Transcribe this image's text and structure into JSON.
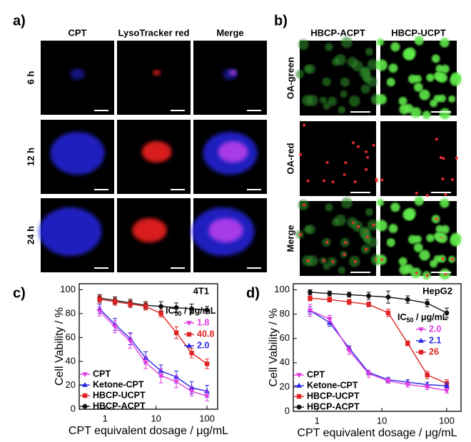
{
  "panel_a": {
    "label": "a)",
    "columns": [
      "CPT",
      "LysoTracker red",
      "Merge"
    ],
    "rows": [
      "6 h",
      "12 h",
      "24 h"
    ]
  },
  "panel_b": {
    "label": "b)",
    "columns": [
      "HBCP-ACPT",
      "HBCP-UCPT"
    ],
    "rows": [
      "OA-green",
      "OA-red",
      "Merge"
    ]
  },
  "chart_data": [
    {
      "type": "line",
      "panel_label": "c)",
      "title": "4T1",
      "x_label": "CPT equivalent dosage / μg/mL",
      "y_label": "Cell Vability / %",
      "x": [
        0.78,
        1.56,
        3.125,
        6.25,
        12.5,
        25,
        50,
        100
      ],
      "x_scale": "log",
      "xlim": [
        0.31,
        162
      ],
      "xticks": [
        1,
        10,
        100
      ],
      "ylim": [
        0,
        105
      ],
      "yticks": [
        0,
        20,
        40,
        60,
        80,
        100
      ],
      "legend": "lower left",
      "series": [
        {
          "name": "CPT",
          "color": "#e03ce0",
          "marker": "triangle-down",
          "values": [
            82,
            69,
            57,
            39,
            28,
            23,
            15,
            11
          ],
          "errors": [
            4,
            5,
            6,
            5,
            6,
            5,
            4,
            4
          ]
        },
        {
          "name": "Ketone-CPT",
          "color": "#2626e6",
          "marker": "triangle-up",
          "values": [
            84,
            71,
            59,
            43,
            32,
            27,
            18,
            15
          ],
          "errors": [
            4,
            5,
            5,
            5,
            5,
            5,
            5,
            5
          ]
        },
        {
          "name": "HBCP-UCPT",
          "color": "#e02222",
          "marker": "square",
          "values": [
            92,
            90,
            88,
            86,
            80,
            64,
            47,
            38
          ],
          "errors": [
            3,
            3,
            3,
            3,
            3,
            5,
            4,
            4
          ]
        },
        {
          "name": "HBCP-ACPT",
          "color": "#111111",
          "marker": "circle",
          "values": [
            93,
            91,
            89,
            87,
            86,
            85,
            84,
            83
          ],
          "errors": [
            3,
            3,
            3,
            3,
            4,
            4,
            4,
            3
          ]
        }
      ],
      "ic50_label": {
        "main": "IC",
        "sub": "50",
        "rest": " / μg/mL"
      },
      "annotations": [
        {
          "text": "1.8",
          "color": "#e03ce0",
          "marker": "triangle-down"
        },
        {
          "text": "40.8",
          "color": "#e02222",
          "marker": "square"
        },
        {
          "text": "2.0",
          "color": "#2626e6",
          "marker": "triangle-up"
        }
      ]
    },
    {
      "type": "line",
      "panel_label": "d)",
      "title": "HepG2",
      "x_label": "CPT equivalent dosage / μg/mL",
      "y_label": "Cell Vability / %",
      "x": [
        0.78,
        1.56,
        3.125,
        6.25,
        12.5,
        25,
        50,
        100
      ],
      "x_scale": "log",
      "xlim": [
        0.43,
        166
      ],
      "xticks": [
        1,
        10,
        100
      ],
      "ylim": [
        0,
        105
      ],
      "yticks": [
        0,
        20,
        40,
        60,
        80,
        100
      ],
      "legend": "lower left",
      "series": [
        {
          "name": "CPT",
          "color": "#e03ce0",
          "marker": "triangle-down",
          "values": [
            83,
            76,
            50,
            31,
            25,
            22,
            20,
            17
          ],
          "errors": [
            5,
            3,
            3,
            3,
            2,
            2,
            2,
            2
          ]
        },
        {
          "name": "Ketone-CPT",
          "color": "#2626e6",
          "marker": "triangle-up",
          "values": [
            83,
            73,
            52,
            32,
            26,
            24,
            22,
            21
          ],
          "errors": [
            3,
            3,
            2,
            2,
            2,
            2,
            2,
            2
          ]
        },
        {
          "name": "HBCP-UCPT",
          "color": "#e02222",
          "marker": "square",
          "values": [
            93,
            92,
            90,
            88,
            81,
            56,
            30,
            23
          ],
          "errors": [
            2,
            2,
            2,
            2,
            3,
            2,
            3,
            3
          ]
        },
        {
          "name": "HBCP-ACPT",
          "color": "#111111",
          "marker": "circle",
          "values": [
            98,
            97,
            96,
            95,
            94,
            92,
            89,
            81
          ],
          "errors": [
            2,
            2,
            2,
            3,
            5,
            3,
            3,
            4
          ]
        }
      ],
      "ic50_label": {
        "main": "IC",
        "sub": "50",
        "rest": " / μg/mL"
      },
      "annotations": [
        {
          "text": "2.0",
          "color": "#e03ce0",
          "marker": "triangle-down"
        },
        {
          "text": "2.1",
          "color": "#2626e6",
          "marker": "triangle-up"
        },
        {
          "text": "26",
          "color": "#e02222",
          "marker": "square"
        }
      ]
    }
  ]
}
